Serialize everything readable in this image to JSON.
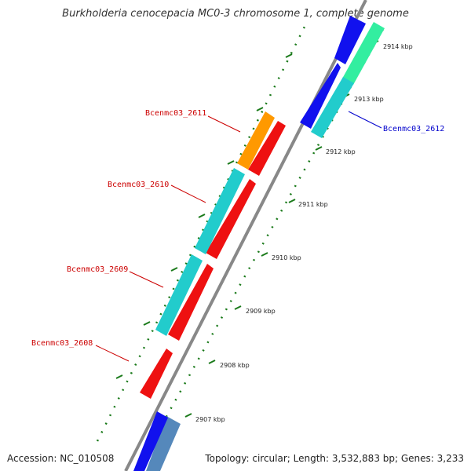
{
  "title": "Burkholderia cenocepacia MC0-3 chromosome 1, complete genome",
  "footer": {
    "accession": "Accession: NC_010508",
    "summary": "Topology: circular; Length: 3,532,883 bp; Genes: 3,233"
  },
  "scale_labels": [
    "2914 kbp",
    "2913 kbp",
    "2912 kbp",
    "2911 kbp",
    "2910 kbp",
    "2909 kbp",
    "2908 kbp",
    "2907 kbp"
  ],
  "gene_labels": [
    {
      "text": "Bcenmc03_2611",
      "color": "#cc0000"
    },
    {
      "text": "Bcenmc03_2610",
      "color": "#cc0000"
    },
    {
      "text": "Bcenmc03_2609",
      "color": "#cc0000"
    },
    {
      "text": "Bcenmc03_2608",
      "color": "#cc0000"
    },
    {
      "text": "Bcenmc03_2612",
      "color": "#0000cc"
    }
  ],
  "colors": {
    "backbone": "#888888",
    "tick": "#1a7a1a",
    "red": "#ee1111",
    "blue": "#1111ee",
    "cyan": "#22cccc",
    "orange": "#ff9900",
    "mint": "#33eea0",
    "steel": "#5588bb"
  }
}
